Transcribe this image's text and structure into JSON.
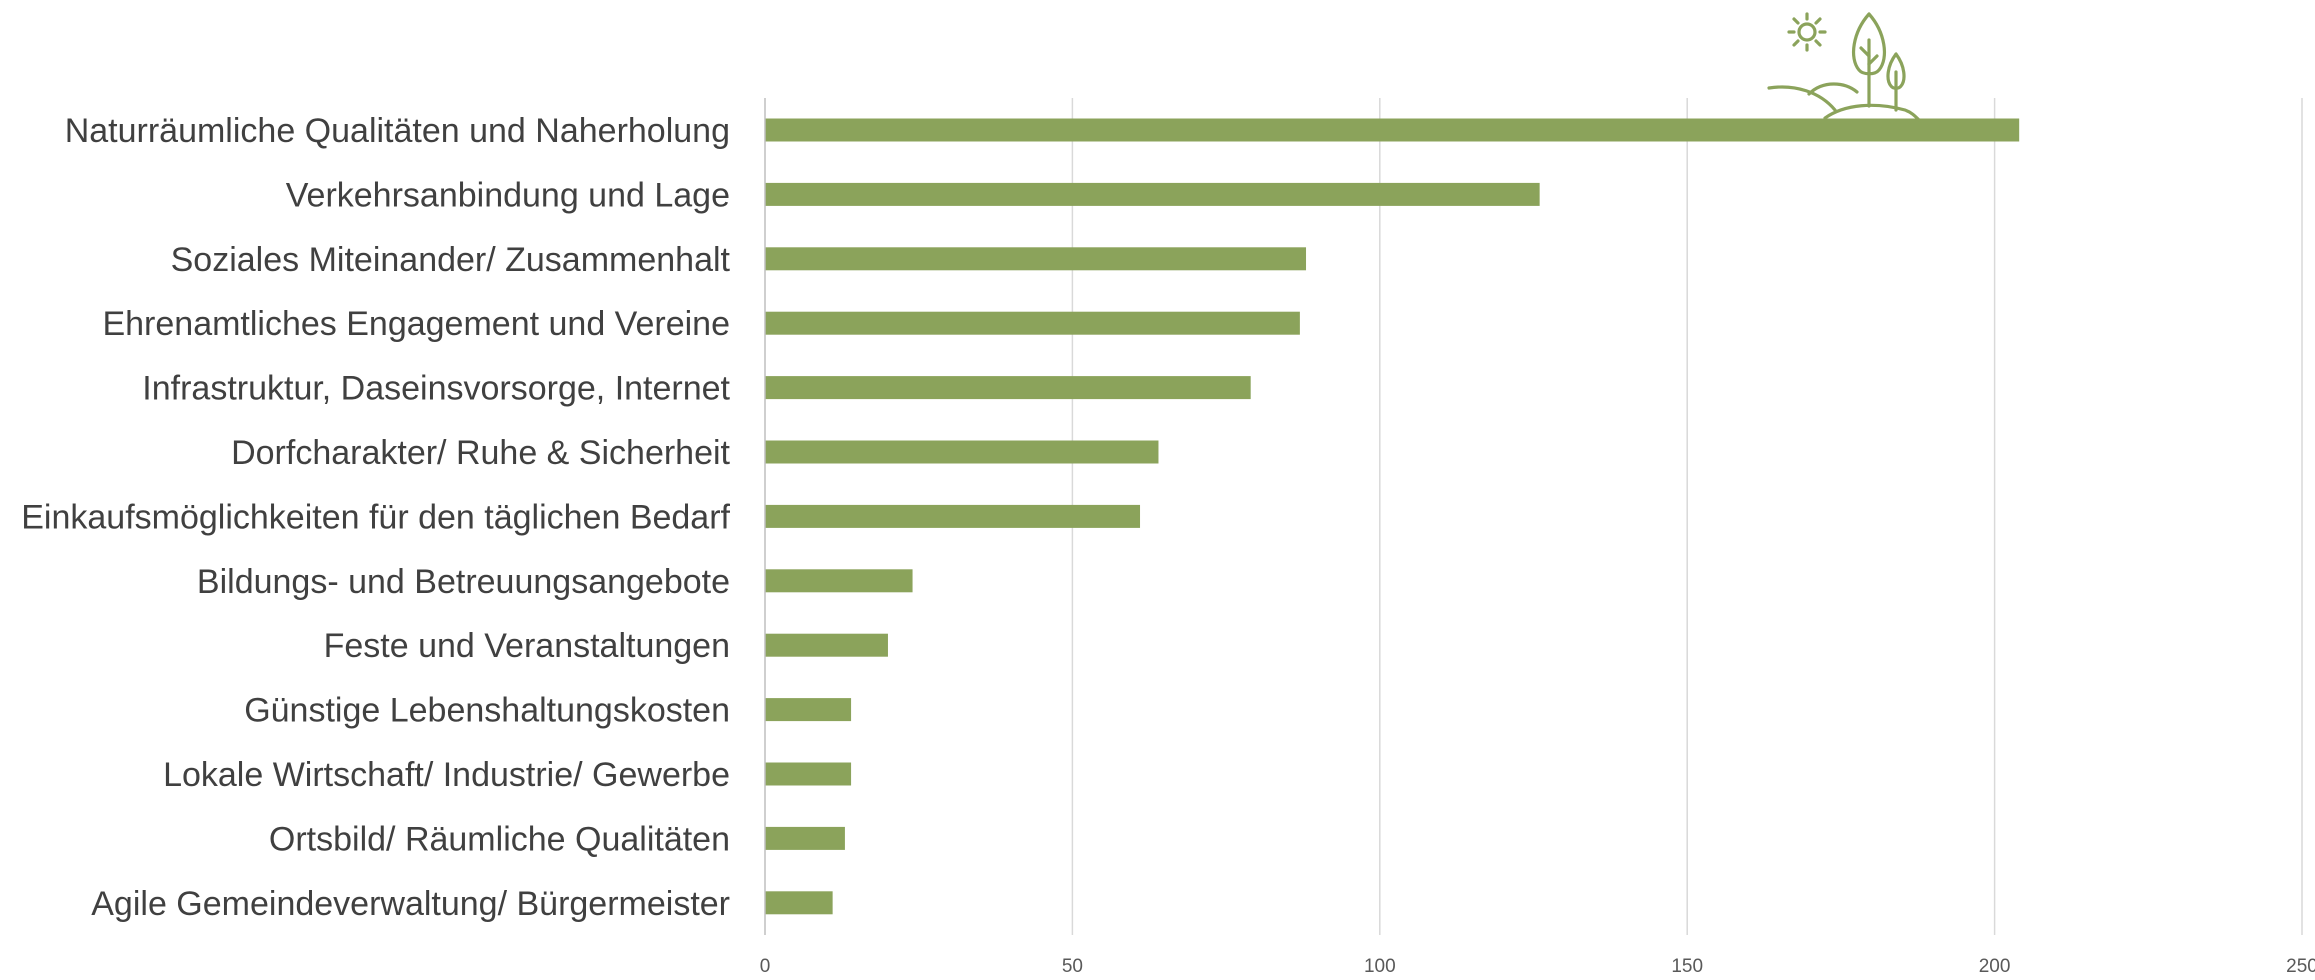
{
  "chart_data": {
    "type": "bar",
    "orientation": "horizontal",
    "categories": [
      "Naturräumliche Qualitäten und Naherholung",
      "Verkehrsanbindung und Lage",
      "Soziales Miteinander/ Zusammenhalt",
      "Ehrenamtliches Engagement und Vereine",
      "Infrastruktur, Daseinsvorsorge, Internet",
      "Dorfcharakter/ Ruhe & Sicherheit",
      "Einkaufsmöglichkeiten für den täglichen Bedarf",
      "Bildungs- und Betreuungsangebote",
      "Feste und Veranstaltungen",
      "Günstige Lebenshaltungskosten",
      "Lokale Wirtschaft/ Industrie/ Gewerbe",
      "Ortsbild/ Räumliche Qualitäten",
      "Agile Gemeindeverwaltung/ Bürgermeister"
    ],
    "values": [
      204,
      126,
      88,
      87,
      79,
      64,
      61,
      24,
      20,
      14,
      14,
      13,
      11
    ],
    "xlim": [
      0,
      250
    ],
    "xticks": [
      "0",
      "50",
      "100",
      "150",
      "200",
      "250"
    ],
    "grid": true,
    "color": "#8ba35b"
  },
  "decoration": {
    "icon": "sun-hills-trees-icon",
    "color": "#8ba35b"
  }
}
